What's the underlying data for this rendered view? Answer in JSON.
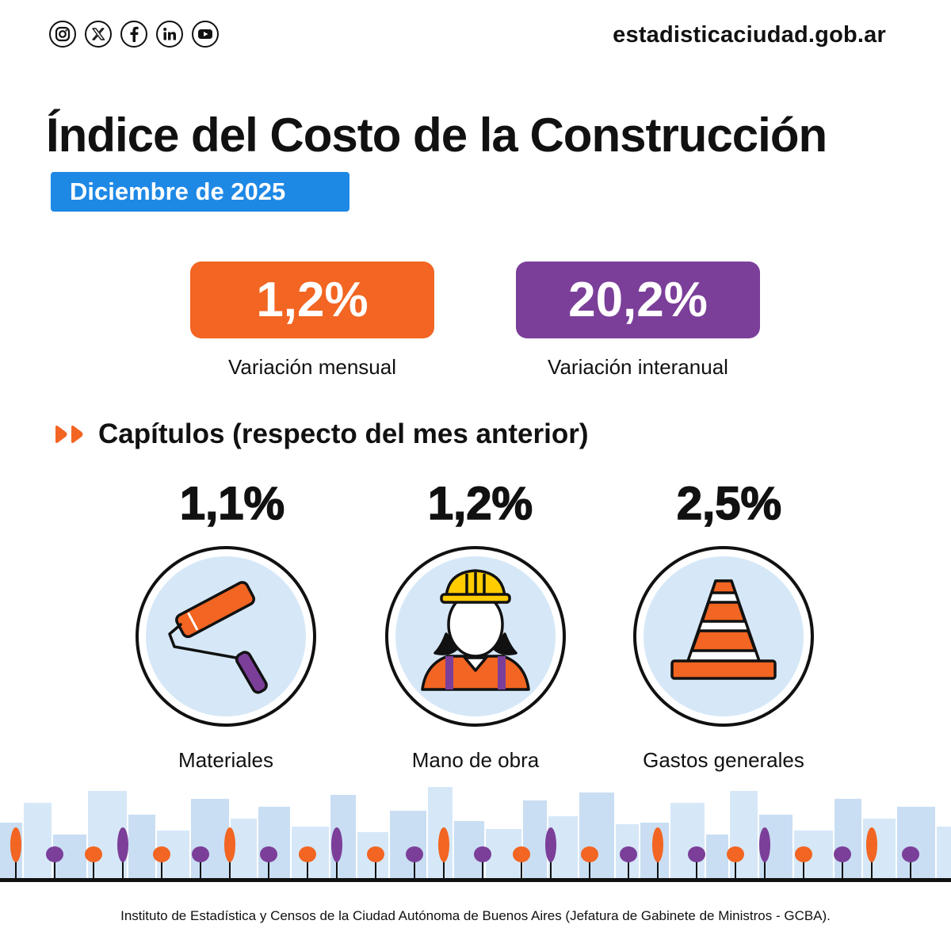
{
  "header": {
    "social_icons": [
      "instagram-icon",
      "x-icon",
      "facebook-icon",
      "linkedin-icon",
      "youtube-icon"
    ],
    "website": "estadisticaciudad.gob.ar"
  },
  "title": "Índice del Costo de la Construcción",
  "date_badge": "Diciembre de 2025",
  "indicators": [
    {
      "value": "1,2%",
      "label": "Variación mensual",
      "color": "#f26522"
    },
    {
      "value": "20,2%",
      "label": "Variación interanual",
      "color": "#7b3f99"
    }
  ],
  "section_title": "Capítulos (respecto del mes anterior)",
  "chapters": [
    {
      "value": "1,1%",
      "label": "Materiales",
      "icon": "paint-roller-icon"
    },
    {
      "value": "1,2%",
      "label": "Mano de obra",
      "icon": "construction-worker-icon"
    },
    {
      "value": "2,5%",
      "label": "Gastos generales",
      "icon": "traffic-cone-icon"
    }
  ],
  "colors": {
    "accent_blue": "#1e88e5",
    "orange": "#f26522",
    "purple": "#7b3f99",
    "light_blue": "#d6e8f8"
  },
  "footer": "Instituto de Estadística y Censos de la Ciudad Autónoma de Buenos Aires (Jefatura de Gabinete de Ministros - GCBA)."
}
